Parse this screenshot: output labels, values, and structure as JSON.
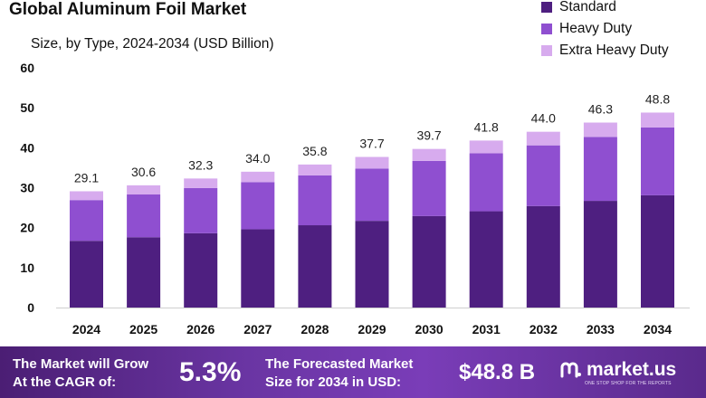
{
  "header": {
    "title": "Global Aluminum Foil Market",
    "subtitle": "Size, by Type, 2024-2034 (USD Billion)"
  },
  "legend": {
    "items": [
      {
        "label": "Standard",
        "color": "#4e1f80"
      },
      {
        "label": "Heavy Duty",
        "color": "#8f4fd0"
      },
      {
        "label": "Extra Heavy Duty",
        "color": "#d7abee"
      }
    ]
  },
  "chart_data": {
    "type": "bar",
    "stacked": true,
    "title": "Global Aluminum Foil Market",
    "subtitle": "Size, by Type, 2024-2034 (USD Billion)",
    "categories": [
      "2024",
      "2025",
      "2026",
      "2027",
      "2028",
      "2029",
      "2030",
      "2031",
      "2032",
      "2033",
      "2034"
    ],
    "series": [
      {
        "name": "Standard",
        "values": [
          16.7,
          17.6,
          18.6,
          19.6,
          20.6,
          21.7,
          22.9,
          24.1,
          25.4,
          26.7,
          28.1
        ]
      },
      {
        "name": "Heavy Duty",
        "values": [
          10.2,
          10.7,
          11.3,
          11.8,
          12.5,
          13.1,
          13.8,
          14.5,
          15.2,
          16.0,
          17.0
        ]
      },
      {
        "name": "Extra Heavy Duty",
        "values": [
          2.2,
          2.3,
          2.4,
          2.6,
          2.7,
          2.9,
          3.0,
          3.2,
          3.4,
          3.6,
          3.7
        ]
      }
    ],
    "totals": [
      "29.1",
      "30.6",
      "32.3",
      "34.0",
      "35.8",
      "37.7",
      "39.7",
      "41.8",
      "44.0",
      "46.3",
      "48.8"
    ],
    "ylim": [
      0,
      60
    ],
    "yticks": [
      0,
      10,
      20,
      30,
      40,
      50,
      60
    ],
    "xlabel": "",
    "ylabel": "",
    "grid": false,
    "legend_position": "top-right"
  },
  "footer": {
    "cagr_text_line1": "The Market will Grow",
    "cagr_text_line2": "At the CAGR of:",
    "cagr_value": "5.3%",
    "forecast_text_line1": "The Forecasted Market",
    "forecast_text_line2": "Size for 2034 in USD:",
    "forecast_value": "$48.8 B",
    "brand_name": "market.us",
    "brand_tagline": "ONE STOP SHOP FOR THE REPORTS"
  }
}
